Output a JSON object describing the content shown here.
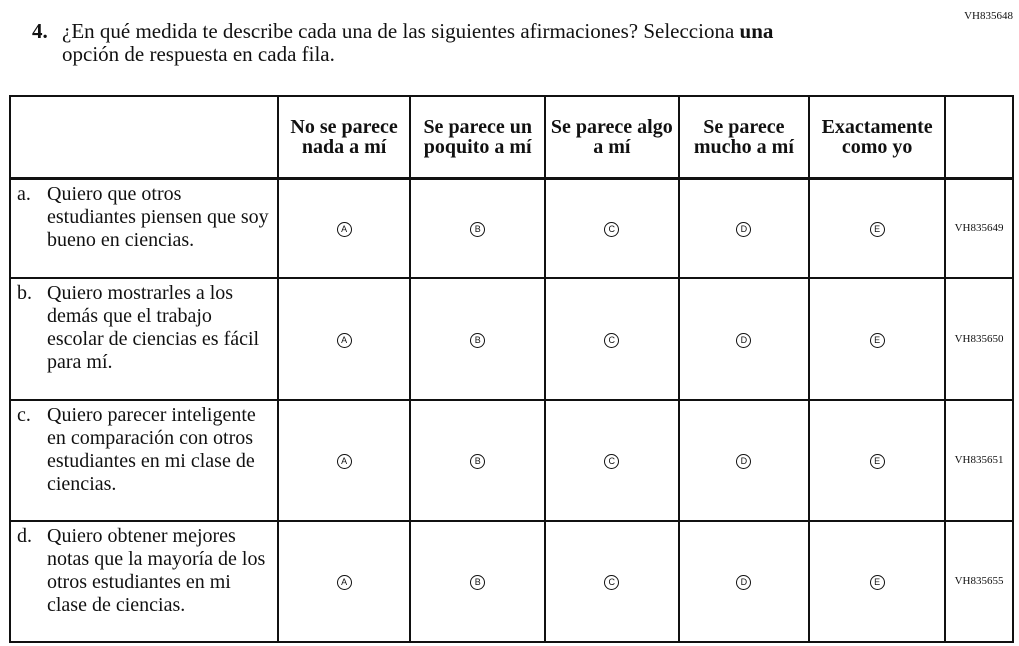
{
  "item_code": "VH835648",
  "question": {
    "number": "4.",
    "text_line1": "¿En qué medida te describe cada una de las siguientes afirmaciones? Selecciona ",
    "text_bold": "una",
    "text_line2": "opción de respuesta en cada fila."
  },
  "columns": [
    "No se parece nada a mí",
    "Se parece un poquito a mí",
    "Se parece algo a mí",
    "Se parece mucho a mí",
    "Exactamente como yo"
  ],
  "options": [
    "A",
    "B",
    "C",
    "D",
    "E"
  ],
  "rows": [
    {
      "letter": "a.",
      "text": "Quiero que otros estudiantes piensen que soy bueno en ciencias.",
      "code": "VH835649"
    },
    {
      "letter": "b.",
      "text": "Quiero mostrarles a los demás que el trabajo escolar de ciencias es fácil para mí.",
      "code": "VH835650"
    },
    {
      "letter": "c.",
      "text": "Quiero parecer inteligente en comparación con otros estudiantes en mi clase de ciencias.",
      "code": "VH835651"
    },
    {
      "letter": "d.",
      "text": "Quiero obtener mejores notas que la mayoría de los otros estudiantes en mi clase de ciencias.",
      "code": "VH835655"
    }
  ]
}
